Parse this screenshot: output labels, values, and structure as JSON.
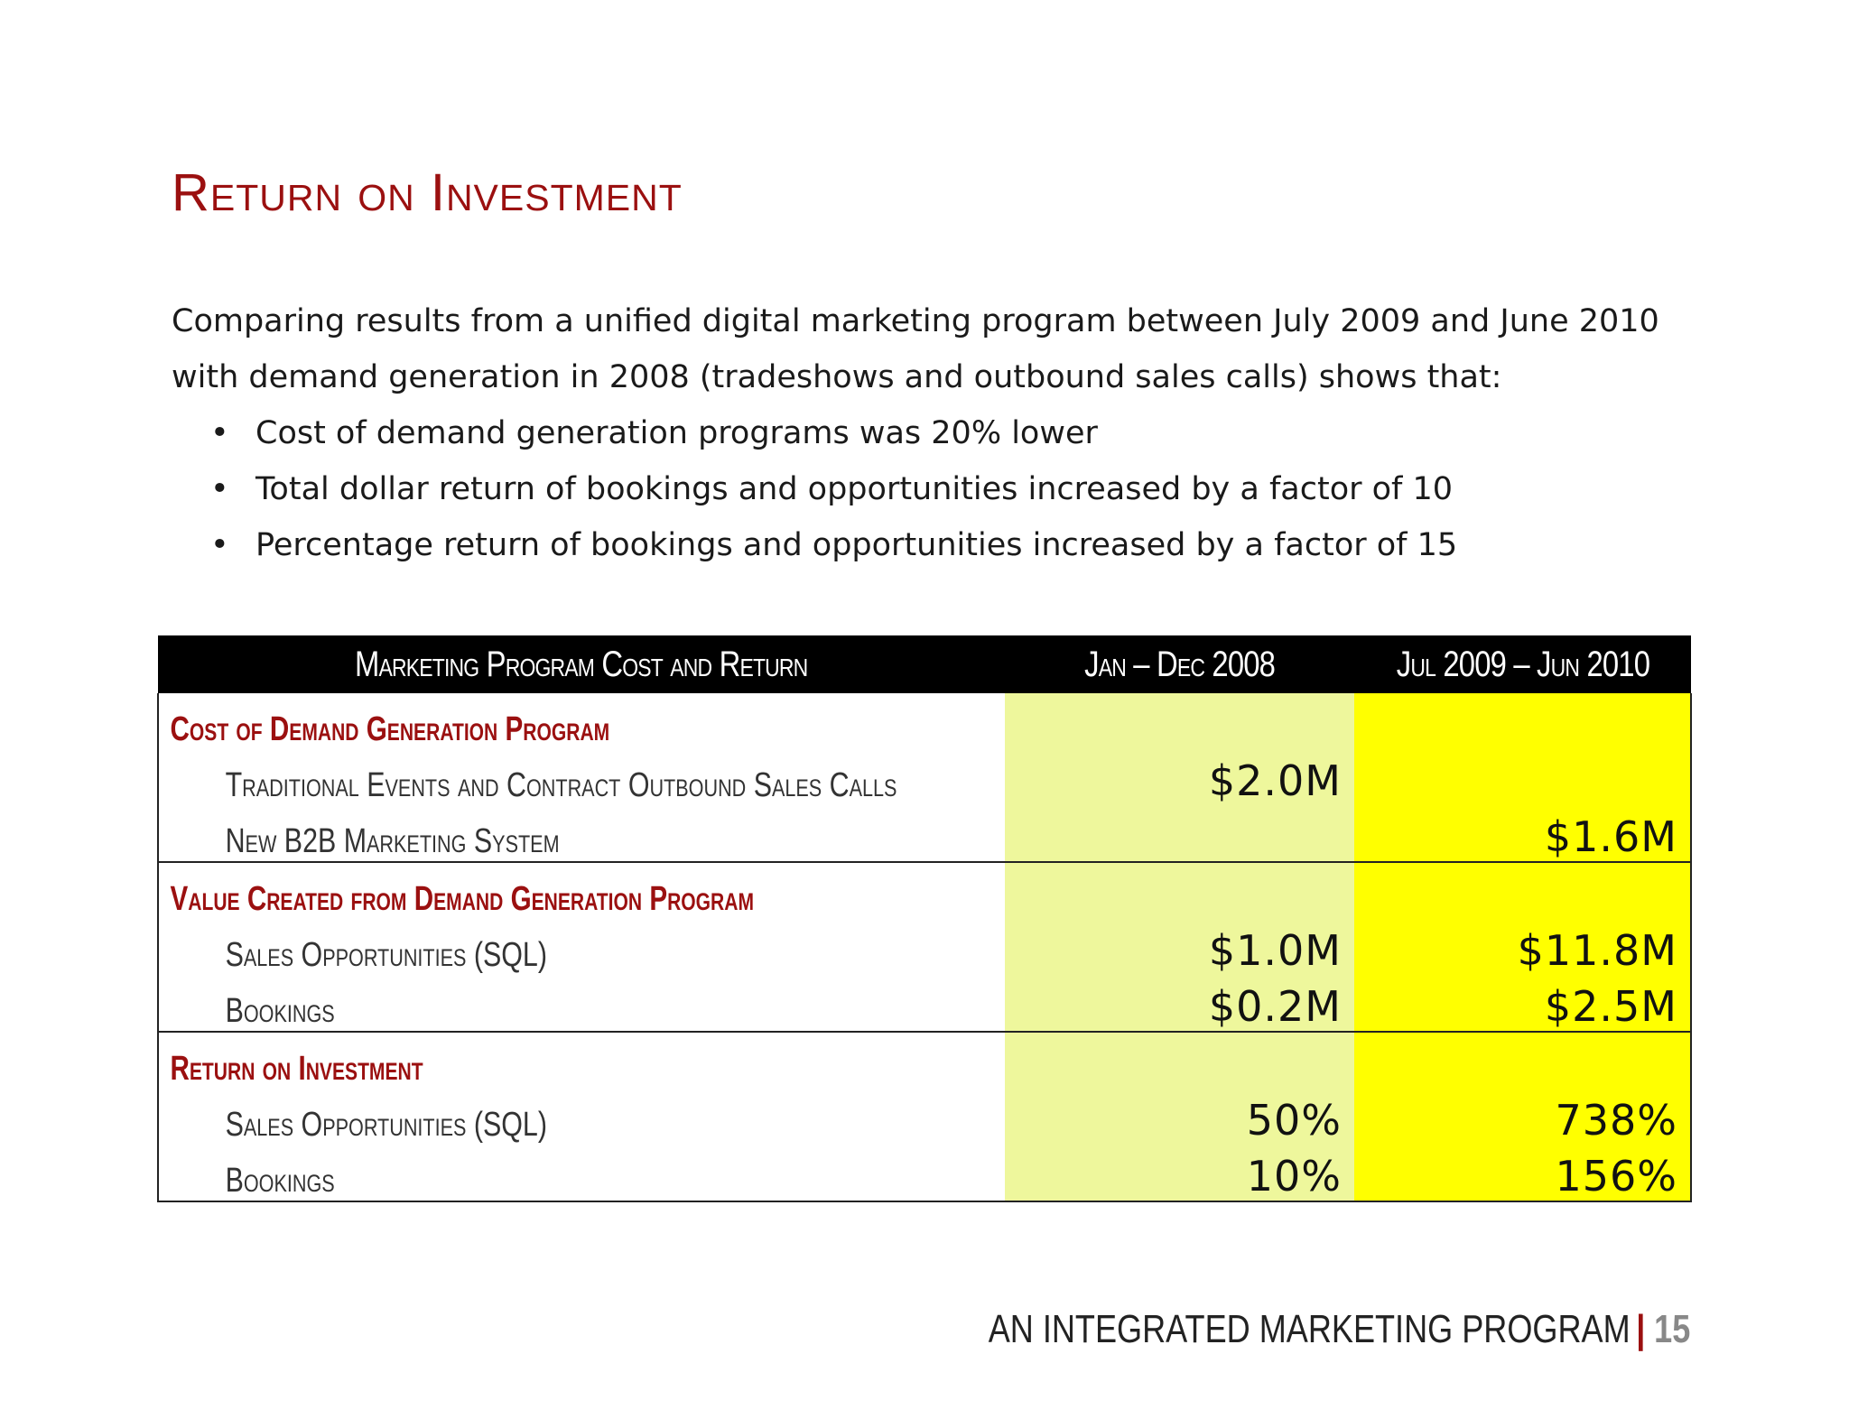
{
  "title": "Return on Investment",
  "intro": "Comparing results from a unified digital marketing program between July 2009 and June 2010 with demand generation in 2008 (tradeshows and outbound sales calls) shows that:",
  "bullets": [
    "Cost of demand generation programs was 20% lower",
    "Total dollar return of bookings and opportunities increased by a factor of 10",
    "Percentage return of bookings and opportunities increased by a factor of 15"
  ],
  "bullet_glyph": "•",
  "table": {
    "headers": [
      "Marketing Program Cost and Return",
      "Jan – Dec 2008",
      "Jul 2009 – Jun 2010"
    ],
    "sections": [
      {
        "label": "Cost of Demand Generation Program",
        "rows": [
          {
            "label": "Traditional Events and Contract Outbound Sales Calls",
            "v2008": "$2.0M",
            "v2010": ""
          },
          {
            "label": "New B2B Marketing System",
            "v2008": "",
            "v2010": "$1.6M"
          }
        ]
      },
      {
        "label": "Value Created from Demand Generation Program",
        "rows": [
          {
            "label": "Sales Opportunities (SQL)",
            "v2008": "$1.0M",
            "v2010": "$11.8M"
          },
          {
            "label": "Bookings",
            "v2008": "$0.2M",
            "v2010": "$2.5M"
          }
        ]
      },
      {
        "label": "Return on Investment",
        "rows": [
          {
            "label": "Sales Opportunities (SQL)",
            "v2008": "50%",
            "v2010": "738%"
          },
          {
            "label": "Bookings",
            "v2008": "10%",
            "v2010": "156%"
          }
        ]
      }
    ]
  },
  "footer": {
    "text": "AN INTEGRATED MARKETING PROGRAM",
    "separator": "|",
    "page_number": "15"
  },
  "colors": {
    "accent": "#9b1010",
    "header_bg": "#000000",
    "col_2008_bg": "#eef79c",
    "col_2010_bg": "#ffff00"
  }
}
